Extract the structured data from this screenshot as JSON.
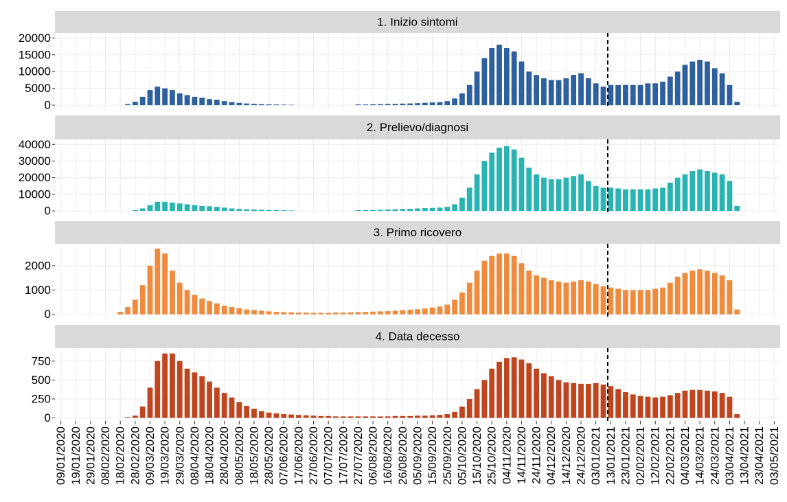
{
  "chart_data": {
    "type": "bar-facets",
    "xlim": [
      "2020-01-05",
      "2021-05-07"
    ],
    "vline": "2021-01-11",
    "x": [
      "2020-02-18",
      "2020-02-23",
      "2020-02-28",
      "2020-03-04",
      "2020-03-09",
      "2020-03-14",
      "2020-03-19",
      "2020-03-24",
      "2020-03-29",
      "2020-04-03",
      "2020-04-08",
      "2020-04-13",
      "2020-04-18",
      "2020-04-23",
      "2020-04-28",
      "2020-05-03",
      "2020-05-08",
      "2020-05-13",
      "2020-05-18",
      "2020-05-23",
      "2020-05-28",
      "2020-06-02",
      "2020-06-07",
      "2020-06-12",
      "2020-06-17",
      "2020-06-22",
      "2020-06-27",
      "2020-07-02",
      "2020-07-07",
      "2020-07-12",
      "2020-07-17",
      "2020-07-22",
      "2020-07-27",
      "2020-08-01",
      "2020-08-06",
      "2020-08-11",
      "2020-08-16",
      "2020-08-21",
      "2020-08-26",
      "2020-08-31",
      "2020-09-05",
      "2020-09-10",
      "2020-09-15",
      "2020-09-20",
      "2020-09-25",
      "2020-09-30",
      "2020-10-05",
      "2020-10-10",
      "2020-10-15",
      "2020-10-20",
      "2020-10-25",
      "2020-10-30",
      "2020-11-04",
      "2020-11-09",
      "2020-11-14",
      "2020-11-19",
      "2020-11-24",
      "2020-11-29",
      "2020-12-04",
      "2020-12-09",
      "2020-12-14",
      "2020-12-19",
      "2020-12-24",
      "2020-12-29",
      "2021-01-03",
      "2021-01-08",
      "2021-01-13",
      "2021-01-18",
      "2021-01-23",
      "2021-01-28",
      "2021-02-02",
      "2021-02-07",
      "2021-02-12",
      "2021-02-17",
      "2021-02-22",
      "2021-02-27",
      "2021-03-04",
      "2021-03-09",
      "2021-03-14",
      "2021-03-19",
      "2021-03-24",
      "2021-03-29",
      "2021-04-03",
      "2021-04-08"
    ],
    "xticks": [
      {
        "value": "2020-01-09",
        "label": "09/01/2020"
      },
      {
        "value": "2020-01-19",
        "label": "19/01/2020"
      },
      {
        "value": "2020-01-29",
        "label": "29/01/2020"
      },
      {
        "value": "2020-02-08",
        "label": "08/02/2020"
      },
      {
        "value": "2020-02-18",
        "label": "18/02/2020"
      },
      {
        "value": "2020-02-28",
        "label": "28/02/2020"
      },
      {
        "value": "2020-03-09",
        "label": "09/03/2020"
      },
      {
        "value": "2020-03-19",
        "label": "19/03/2020"
      },
      {
        "value": "2020-03-29",
        "label": "29/03/2020"
      },
      {
        "value": "2020-04-08",
        "label": "08/04/2020"
      },
      {
        "value": "2020-04-18",
        "label": "18/04/2020"
      },
      {
        "value": "2020-04-28",
        "label": "28/04/2020"
      },
      {
        "value": "2020-05-08",
        "label": "08/05/2020"
      },
      {
        "value": "2020-05-18",
        "label": "18/05/2020"
      },
      {
        "value": "2020-05-28",
        "label": "28/05/2020"
      },
      {
        "value": "2020-06-07",
        "label": "07/06/2020"
      },
      {
        "value": "2020-06-17",
        "label": "17/06/2020"
      },
      {
        "value": "2020-06-27",
        "label": "27/06/2020"
      },
      {
        "value": "2020-07-07",
        "label": "07/07/2020"
      },
      {
        "value": "2020-07-17",
        "label": "17/07/2020"
      },
      {
        "value": "2020-07-27",
        "label": "27/07/2020"
      },
      {
        "value": "2020-08-06",
        "label": "06/08/2020"
      },
      {
        "value": "2020-08-16",
        "label": "16/08/2020"
      },
      {
        "value": "2020-08-26",
        "label": "26/08/2020"
      },
      {
        "value": "2020-09-05",
        "label": "05/09/2020"
      },
      {
        "value": "2020-09-15",
        "label": "15/09/2020"
      },
      {
        "value": "2020-09-25",
        "label": "25/09/2020"
      },
      {
        "value": "2020-10-05",
        "label": "05/10/2020"
      },
      {
        "value": "2020-10-15",
        "label": "15/10/2020"
      },
      {
        "value": "2020-10-25",
        "label": "25/10/2020"
      },
      {
        "value": "2020-11-04",
        "label": "04/11/2020"
      },
      {
        "value": "2020-11-14",
        "label": "14/11/2020"
      },
      {
        "value": "2020-11-24",
        "label": "24/11/2020"
      },
      {
        "value": "2020-12-04",
        "label": "04/12/2020"
      },
      {
        "value": "2020-12-14",
        "label": "14/12/2020"
      },
      {
        "value": "2020-12-24",
        "label": "24/12/2020"
      },
      {
        "value": "2021-01-03",
        "label": "03/01/2021"
      },
      {
        "value": "2021-01-13",
        "label": "13/01/2021"
      },
      {
        "value": "2021-01-23",
        "label": "23/01/2021"
      },
      {
        "value": "2021-02-02",
        "label": "02/02/2021"
      },
      {
        "value": "2021-02-12",
        "label": "12/02/2021"
      },
      {
        "value": "2021-02-22",
        "label": "22/02/2021"
      },
      {
        "value": "2021-03-04",
        "label": "04/03/2021"
      },
      {
        "value": "2021-03-14",
        "label": "14/03/2021"
      },
      {
        "value": "2021-03-24",
        "label": "24/03/2021"
      },
      {
        "value": "2021-04-03",
        "label": "03/04/2021"
      },
      {
        "value": "2021-04-13",
        "label": "13/04/2021"
      },
      {
        "value": "2021-04-23",
        "label": "23/04/2021"
      },
      {
        "value": "2021-05-03",
        "label": "03/05/2021"
      }
    ],
    "panels": [
      {
        "title": "1. Inizio sintomi",
        "color": "#2e5f9e",
        "ylim": [
          -1000,
          21500
        ],
        "yticks": [
          0,
          5000,
          10000,
          15000,
          20000
        ],
        "values": [
          0,
          300,
          1000,
          2500,
          4500,
          5500,
          5000,
          4500,
          3500,
          3000,
          2500,
          2200,
          1800,
          1600,
          1200,
          900,
          700,
          500,
          400,
          300,
          250,
          200,
          150,
          100,
          0,
          0,
          0,
          0,
          0,
          0,
          0,
          0,
          200,
          200,
          250,
          300,
          350,
          400,
          450,
          500,
          600,
          700,
          800,
          900,
          1200,
          2000,
          3500,
          6000,
          10000,
          14000,
          17000,
          18000,
          17000,
          16000,
          13000,
          10000,
          9000,
          8000,
          7500,
          7500,
          8000,
          9000,
          9500,
          8000,
          6500,
          5500,
          6000,
          6000,
          6000,
          6000,
          6000,
          6500,
          6500,
          7000,
          8500,
          10000,
          12000,
          13000,
          13500,
          13000,
          11000,
          9500,
          6000,
          1000
        ]
      },
      {
        "title": "2. Prelievo/diagnosi",
        "color": "#2ab3b3",
        "ylim": [
          -2000,
          43000
        ],
        "yticks": [
          0,
          10000,
          20000,
          30000,
          40000
        ],
        "values": [
          0,
          0,
          500,
          1500,
          3500,
          5500,
          5500,
          5000,
          4500,
          4000,
          3500,
          3000,
          2800,
          2500,
          2000,
          1500,
          1200,
          1000,
          800,
          700,
          600,
          500,
          400,
          300,
          0,
          0,
          0,
          0,
          0,
          0,
          0,
          0,
          500,
          500,
          600,
          700,
          900,
          1000,
          1200,
          1300,
          1500,
          1700,
          1800,
          2000,
          2500,
          4000,
          8000,
          14000,
          22000,
          30000,
          35000,
          38000,
          39000,
          37000,
          32000,
          26000,
          22000,
          20000,
          19000,
          19000,
          20000,
          21000,
          22000,
          18000,
          15000,
          14000,
          14000,
          13500,
          13000,
          13000,
          13000,
          13000,
          13500,
          14000,
          17000,
          20000,
          22000,
          24000,
          25000,
          24000,
          23000,
          22000,
          18000,
          3000
        ]
      },
      {
        "title": "3. Primo ricovero",
        "color": "#f08a3c",
        "ylim": [
          -150,
          2900
        ],
        "yticks": [
          0,
          1000,
          2000
        ],
        "values": [
          100,
          300,
          600,
          1200,
          2000,
          2700,
          2500,
          1800,
          1300,
          1000,
          800,
          650,
          550,
          450,
          350,
          300,
          250,
          200,
          180,
          150,
          120,
          100,
          90,
          80,
          70,
          70,
          60,
          60,
          60,
          70,
          70,
          80,
          90,
          100,
          110,
          120,
          130,
          150,
          170,
          190,
          210,
          240,
          280,
          320,
          400,
          600,
          900,
          1300,
          1800,
          2200,
          2400,
          2500,
          2500,
          2400,
          2100,
          1800,
          1600,
          1500,
          1400,
          1350,
          1300,
          1350,
          1400,
          1350,
          1250,
          1150,
          1100,
          1050,
          1000,
          1000,
          1000,
          1000,
          1050,
          1100,
          1300,
          1550,
          1700,
          1800,
          1850,
          1800,
          1700,
          1600,
          1400,
          200
        ]
      },
      {
        "title": "4. Data decesso",
        "color": "#c0451e",
        "ylim": [
          -40,
          920
        ],
        "yticks": [
          0,
          250,
          500,
          750
        ],
        "values": [
          0,
          10,
          30,
          150,
          400,
          750,
          850,
          850,
          750,
          650,
          600,
          550,
          480,
          400,
          330,
          270,
          210,
          160,
          120,
          90,
          70,
          60,
          50,
          45,
          40,
          35,
          30,
          25,
          25,
          20,
          20,
          20,
          20,
          20,
          20,
          20,
          20,
          25,
          25,
          25,
          30,
          30,
          35,
          40,
          50,
          80,
          150,
          250,
          380,
          500,
          650,
          740,
          790,
          800,
          770,
          720,
          650,
          590,
          550,
          500,
          470,
          460,
          450,
          450,
          460,
          440,
          420,
          380,
          340,
          310,
          290,
          280,
          270,
          280,
          300,
          330,
          360,
          370,
          370,
          360,
          350,
          330,
          280,
          50
        ]
      }
    ]
  }
}
